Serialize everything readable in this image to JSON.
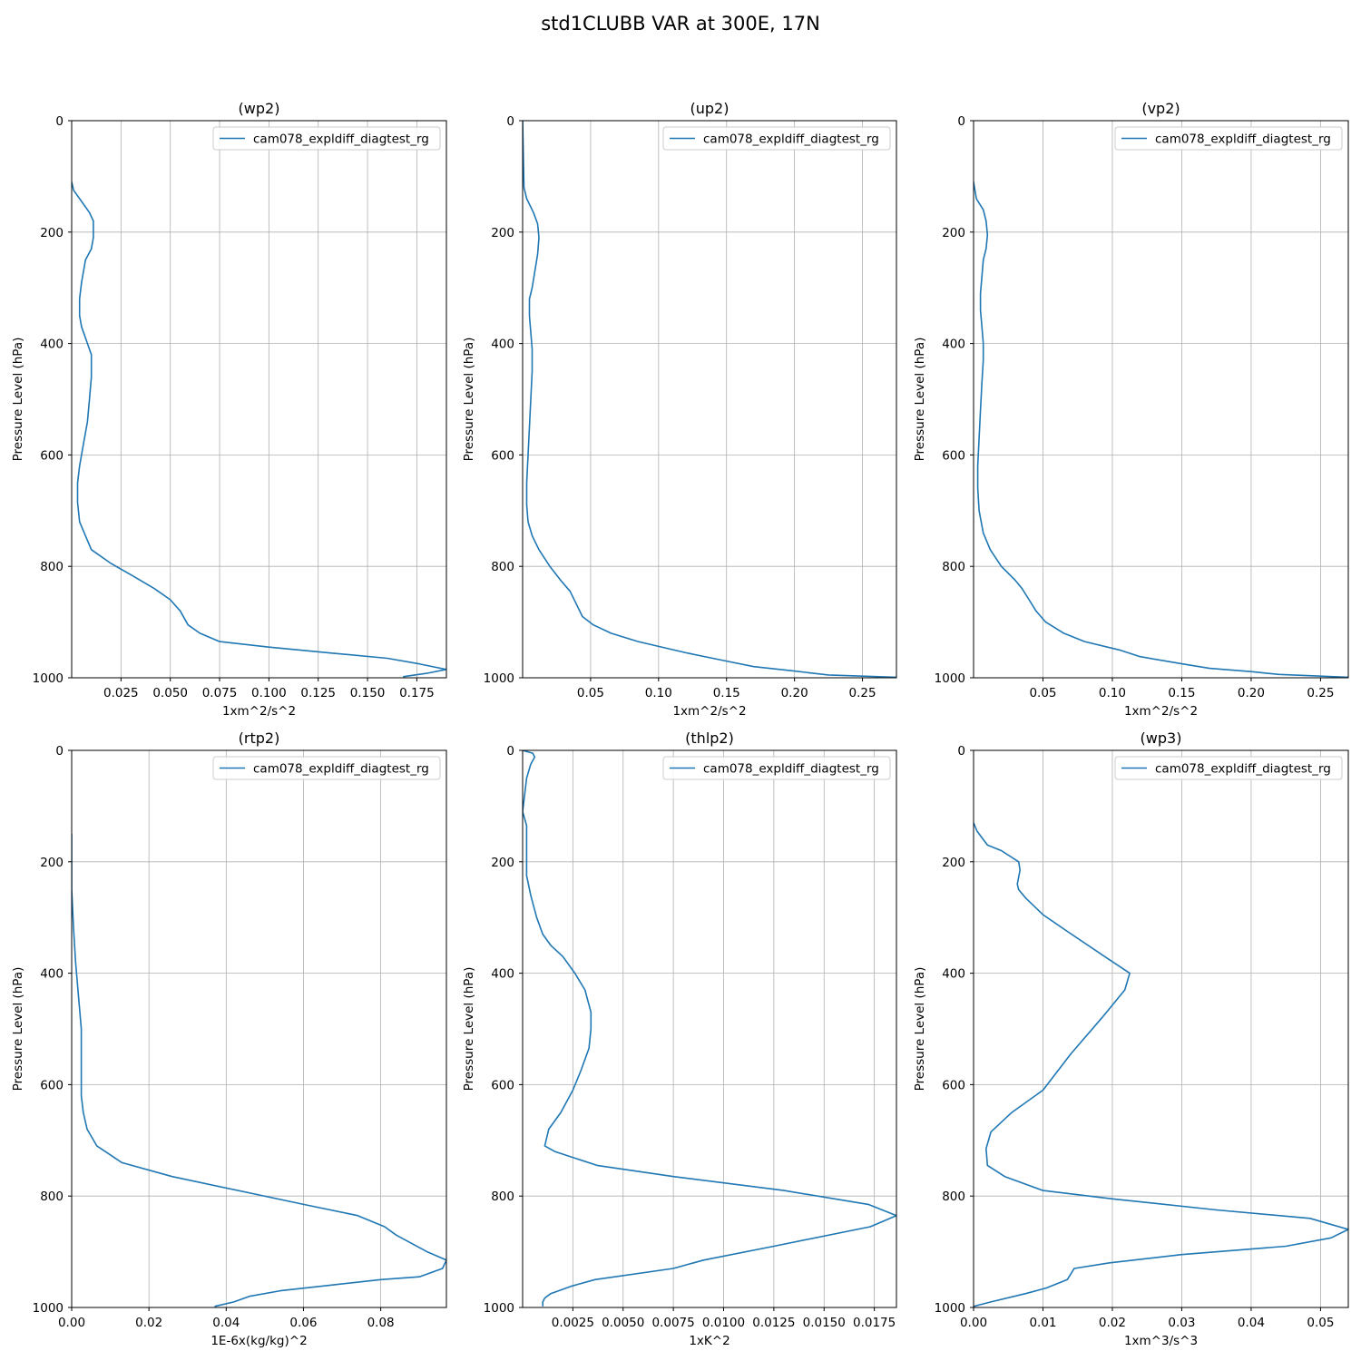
{
  "figure": {
    "title": "std1CLUBB VAR at 300E, 17N"
  },
  "colors": {
    "line": "#1f77b4",
    "grid": "#b0b0b0",
    "axis": "#000000",
    "legend_border": "#cccccc"
  },
  "chart_data": [
    {
      "type": "line",
      "title": "(wp2)",
      "xlabel": "1xm^2/s^2",
      "ylabel": "Pressure Level (hPa)",
      "xlim": [
        0,
        0.19
      ],
      "ylim": [
        1000,
        0
      ],
      "xticks": [
        0.025,
        0.05,
        0.075,
        0.1,
        0.125,
        0.15,
        0.175
      ],
      "xticklabels": [
        "0.025",
        "0.050",
        "0.075",
        "0.100",
        "0.125",
        "0.150",
        "0.175"
      ],
      "yticks": [
        0,
        200,
        400,
        600,
        800,
        1000
      ],
      "yticklabels": [
        "0",
        "200",
        "400",
        "600",
        "800",
        "1000"
      ],
      "grid": true,
      "legend": "top-right",
      "series": [
        {
          "name": "cam078_expldiff_diagtest_rg",
          "x": [
            0.0,
            0.001,
            0.005,
            0.009,
            0.011,
            0.011,
            0.01,
            0.007,
            0.005,
            0.004,
            0.004,
            0.005,
            0.008,
            0.01,
            0.01,
            0.009,
            0.008,
            0.006,
            0.004,
            0.003,
            0.003,
            0.004,
            0.007,
            0.01,
            0.02,
            0.03,
            0.042,
            0.05,
            0.055,
            0.059,
            0.065,
            0.075,
            0.1,
            0.13,
            0.16,
            0.176,
            0.19,
            0.18,
            0.168
          ],
          "y": [
            110,
            125,
            145,
            165,
            180,
            210,
            230,
            250,
            290,
            320,
            350,
            370,
            400,
            420,
            460,
            500,
            540,
            580,
            620,
            650,
            685,
            720,
            745,
            770,
            795,
            815,
            840,
            860,
            880,
            905,
            920,
            935,
            945,
            955,
            965,
            975,
            985,
            992,
            998
          ]
        }
      ]
    },
    {
      "type": "line",
      "title": "(up2)",
      "xlabel": "1xm^2/s^2",
      "ylabel": "Pressure Level (hPa)",
      "xlim": [
        0,
        0.275
      ],
      "ylim": [
        1000,
        0
      ],
      "xticks": [
        0.05,
        0.1,
        0.15,
        0.2,
        0.25
      ],
      "xticklabels": [
        "0.05",
        "0.10",
        "0.15",
        "0.20",
        "0.25"
      ],
      "yticks": [
        0,
        200,
        400,
        600,
        800,
        1000
      ],
      "yticklabels": [
        "0",
        "200",
        "400",
        "600",
        "800",
        "1000"
      ],
      "grid": true,
      "legend": "top-right",
      "series": [
        {
          "name": "cam078_expldiff_diagtest_rg",
          "x": [
            0.0,
            0.001,
            0.003,
            0.008,
            0.011,
            0.012,
            0.011,
            0.009,
            0.007,
            0.005,
            0.005,
            0.006,
            0.007,
            0.007,
            0.006,
            0.005,
            0.004,
            0.003,
            0.003,
            0.004,
            0.007,
            0.012,
            0.02,
            0.028,
            0.035,
            0.04,
            0.044,
            0.052,
            0.065,
            0.085,
            0.12,
            0.15,
            0.17,
            0.2,
            0.225,
            0.275
          ],
          "y": [
            0,
            120,
            140,
            165,
            185,
            210,
            240,
            270,
            300,
            320,
            350,
            380,
            410,
            450,
            500,
            550,
            600,
            650,
            690,
            720,
            745,
            770,
            800,
            825,
            845,
            870,
            890,
            905,
            920,
            935,
            955,
            970,
            980,
            988,
            995,
            999
          ]
        }
      ]
    },
    {
      "type": "line",
      "title": "(vp2)",
      "xlabel": "1xm^2/s^2",
      "ylabel": "Pressure Level (hPa)",
      "xlim": [
        0,
        0.27
      ],
      "ylim": [
        1000,
        0
      ],
      "xticks": [
        0.05,
        0.1,
        0.15,
        0.2,
        0.25
      ],
      "xticklabels": [
        "0.05",
        "0.10",
        "0.15",
        "0.20",
        "0.25"
      ],
      "yticks": [
        0,
        200,
        400,
        600,
        800,
        1000
      ],
      "yticklabels": [
        "0",
        "200",
        "400",
        "600",
        "800",
        "1000"
      ],
      "grid": true,
      "legend": "top-right",
      "series": [
        {
          "name": "cam078_expldiff_diagtest_rg",
          "x": [
            0.0,
            0.002,
            0.007,
            0.009,
            0.01,
            0.009,
            0.007,
            0.006,
            0.005,
            0.005,
            0.006,
            0.007,
            0.007,
            0.006,
            0.005,
            0.004,
            0.003,
            0.003,
            0.004,
            0.007,
            0.012,
            0.02,
            0.03,
            0.035,
            0.04,
            0.045,
            0.052,
            0.065,
            0.08,
            0.105,
            0.12,
            0.15,
            0.17,
            0.2,
            0.22,
            0.27
          ],
          "y": [
            110,
            140,
            160,
            180,
            205,
            230,
            250,
            280,
            310,
            340,
            370,
            400,
            430,
            470,
            520,
            570,
            620,
            660,
            700,
            740,
            770,
            800,
            825,
            840,
            860,
            880,
            900,
            920,
            935,
            950,
            962,
            975,
            983,
            989,
            994,
            999
          ]
        }
      ]
    },
    {
      "type": "line",
      "title": "(rtp2)",
      "xlabel": "1E-6x(kg/kg)^2",
      "ylabel": "Pressure Level (hPa)",
      "xlim": [
        0,
        0.097
      ],
      "ylim": [
        1000,
        0
      ],
      "xticks": [
        0.0,
        0.02,
        0.04,
        0.06,
        0.08
      ],
      "xticklabels": [
        "0.00",
        "0.02",
        "0.04",
        "0.06",
        "0.08"
      ],
      "yticks": [
        0,
        200,
        400,
        600,
        800,
        1000
      ],
      "yticklabels": [
        "0",
        "200",
        "400",
        "600",
        "800",
        "1000"
      ],
      "grid": true,
      "legend": "top-right",
      "series": [
        {
          "name": "cam078_expldiff_diagtest_rg",
          "x": [
            0.0,
            0.0,
            0.0005,
            0.001,
            0.0015,
            0.002,
            0.0025,
            0.0025,
            0.0025,
            0.0025,
            0.003,
            0.004,
            0.0065,
            0.013,
            0.026,
            0.06,
            0.074,
            0.081,
            0.084,
            0.088,
            0.092,
            0.097,
            0.096,
            0.09,
            0.08,
            0.067,
            0.054,
            0.046,
            0.042,
            0.037
          ],
          "y": [
            150,
            250,
            320,
            380,
            420,
            460,
            500,
            540,
            580,
            620,
            650,
            680,
            710,
            740,
            765,
            815,
            835,
            855,
            870,
            885,
            900,
            915,
            930,
            945,
            950,
            960,
            970,
            980,
            990,
            998
          ]
        }
      ]
    },
    {
      "type": "line",
      "title": "(thlp2)",
      "xlabel": "1xK^2",
      "ylabel": "Pressure Level (hPa)",
      "xlim": [
        0,
        0.0186
      ],
      "ylim": [
        1000,
        0
      ],
      "xticks": [
        0.0025,
        0.005,
        0.0075,
        0.01,
        0.0125,
        0.015,
        0.0175
      ],
      "xticklabels": [
        "0.0025",
        "0.0050",
        "0.0075",
        "0.0100",
        "0.0125",
        "0.0150",
        "0.0175"
      ],
      "yticks": [
        0,
        200,
        400,
        600,
        800,
        1000
      ],
      "yticklabels": [
        "0",
        "200",
        "400",
        "600",
        "800",
        "1000"
      ],
      "grid": true,
      "legend": "top-right",
      "series": [
        {
          "name": "cam078_expldiff_diagtest_rg",
          "x": [
            0.0,
            0.0005,
            0.0006,
            0.0004,
            0.0002,
            0.0001,
            0.0,
            0.0002,
            0.0002,
            0.0002,
            0.0002,
            0.0004,
            0.0007,
            0.001,
            0.0014,
            0.002,
            0.0026,
            0.0031,
            0.0034,
            0.0034,
            0.0033,
            0.0029,
            0.0025,
            0.0019,
            0.0013,
            0.0011,
            0.0016,
            0.0037,
            0.0075,
            0.013,
            0.0172,
            0.0186,
            0.0173,
            0.0125,
            0.009,
            0.0075,
            0.0036,
            0.0024,
            0.0014,
            0.0011,
            0.001,
            0.001
          ],
          "y": [
            0,
            5,
            12,
            25,
            50,
            80,
            110,
            135,
            160,
            200,
            225,
            260,
            300,
            330,
            350,
            370,
            400,
            430,
            470,
            500,
            535,
            575,
            610,
            650,
            680,
            710,
            720,
            745,
            765,
            790,
            815,
            835,
            855,
            890,
            915,
            930,
            950,
            962,
            975,
            983,
            990,
            998
          ]
        }
      ]
    },
    {
      "type": "line",
      "title": "(wp3)",
      "xlabel": "1xm^3/s^3",
      "ylabel": "Pressure Level (hPa)",
      "xlim": [
        0,
        0.054
      ],
      "ylim": [
        1000,
        0
      ],
      "xticks": [
        0.0,
        0.01,
        0.02,
        0.03,
        0.04,
        0.05
      ],
      "xticklabels": [
        "0.00",
        "0.01",
        "0.02",
        "0.03",
        "0.04",
        "0.05"
      ],
      "yticks": [
        0,
        200,
        400,
        600,
        800,
        1000
      ],
      "yticklabels": [
        "0",
        "200",
        "400",
        "600",
        "800",
        "1000"
      ],
      "grid": true,
      "legend": "top-right",
      "series": [
        {
          "name": "cam078_expldiff_diagtest_rg",
          "x": [
            0.0,
            0.0005,
            0.002,
            0.004,
            0.0065,
            0.0067,
            0.0063,
            0.0065,
            0.0075,
            0.01,
            0.0135,
            0.0195,
            0.0225,
            0.0218,
            0.0185,
            0.014,
            0.01,
            0.0055,
            0.0025,
            0.0018,
            0.002,
            0.0045,
            0.01,
            0.02,
            0.035,
            0.0485,
            0.054,
            0.0515,
            0.045,
            0.03,
            0.0195,
            0.0145,
            0.014,
            0.0135,
            0.0125,
            0.0105,
            0.0075,
            0.0025,
            0.0
          ],
          "y": [
            130,
            145,
            170,
            180,
            200,
            215,
            240,
            250,
            265,
            295,
            325,
            375,
            400,
            430,
            480,
            545,
            610,
            650,
            685,
            715,
            745,
            765,
            790,
            805,
            825,
            840,
            860,
            875,
            890,
            905,
            920,
            930,
            940,
            950,
            955,
            965,
            975,
            990,
            998
          ]
        }
      ]
    }
  ]
}
